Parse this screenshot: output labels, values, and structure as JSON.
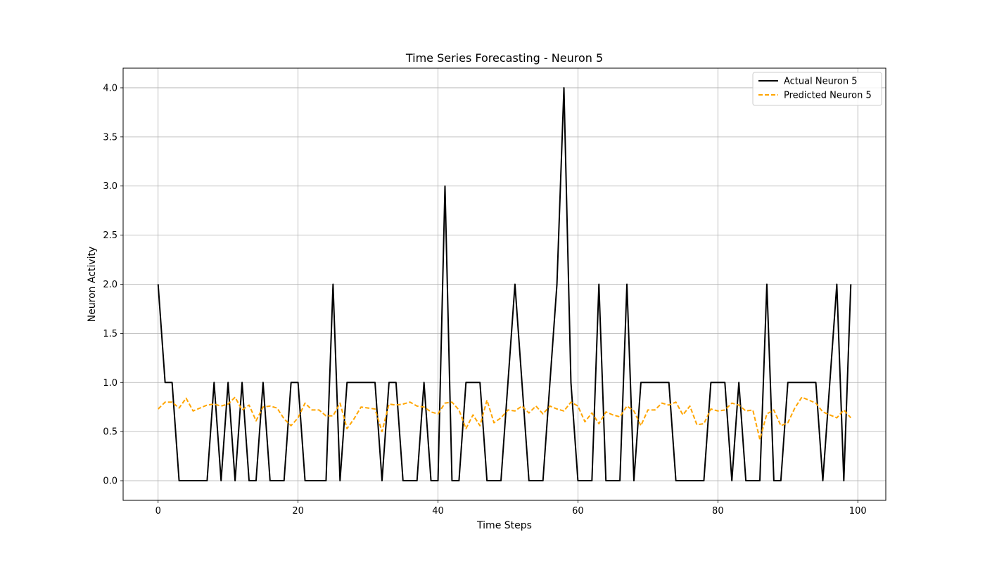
{
  "chart_data": {
    "type": "line",
    "title": "Time Series Forecasting - Neuron 5",
    "xlabel": "Time Steps",
    "ylabel": "Neuron Activity",
    "xlim": [
      -5,
      104
    ],
    "ylim": [
      -0.2,
      4.2
    ],
    "xticks": [
      0,
      20,
      40,
      60,
      80,
      100
    ],
    "yticks": [
      0.0,
      0.5,
      1.0,
      1.5,
      2.0,
      2.5,
      3.0,
      3.5,
      4.0
    ],
    "ytick_labels": [
      "0.0",
      "0.5",
      "1.0",
      "1.5",
      "2.0",
      "2.5",
      "3.0",
      "3.5",
      "4.0"
    ],
    "grid": true,
    "legend_position": "top-right",
    "x": [
      0,
      1,
      2,
      3,
      4,
      5,
      6,
      7,
      8,
      9,
      10,
      11,
      12,
      13,
      14,
      15,
      16,
      17,
      18,
      19,
      20,
      21,
      22,
      23,
      24,
      25,
      26,
      27,
      28,
      29,
      30,
      31,
      32,
      33,
      34,
      35,
      36,
      37,
      38,
      39,
      40,
      41,
      42,
      43,
      44,
      45,
      46,
      47,
      48,
      49,
      50,
      51,
      52,
      53,
      54,
      55,
      56,
      57,
      58,
      59,
      60,
      61,
      62,
      63,
      64,
      65,
      66,
      67,
      68,
      69,
      70,
      71,
      72,
      73,
      74,
      75,
      76,
      77,
      78,
      79,
      80,
      81,
      82,
      83,
      84,
      85,
      86,
      87,
      88,
      89,
      90,
      91,
      92,
      93,
      94,
      95,
      96,
      97,
      98,
      99
    ],
    "series": [
      {
        "name": "Actual Neuron 5",
        "color": "#000000",
        "style": "solid",
        "values": [
          2,
          1,
          1,
          0,
          0,
          0,
          0,
          0,
          1,
          0,
          1,
          0,
          1,
          0,
          0,
          1,
          0,
          0,
          0,
          1,
          1,
          0,
          0,
          0,
          0,
          2,
          0,
          1,
          1,
          1,
          1,
          1,
          0,
          1,
          1,
          0,
          0,
          0,
          1,
          0,
          0,
          3,
          0,
          0,
          1,
          1,
          1,
          0,
          0,
          0,
          1,
          2,
          1,
          0,
          0,
          0,
          1,
          2,
          4,
          1,
          0,
          0,
          0,
          2,
          0,
          0,
          0,
          2,
          0,
          1,
          1,
          1,
          1,
          1,
          0,
          0,
          0,
          0,
          0,
          1,
          1,
          1,
          0,
          1,
          0,
          0,
          0,
          2,
          0,
          0,
          1,
          1,
          1,
          1,
          1,
          0,
          1,
          2,
          0,
          2
        ]
      },
      {
        "name": "Predicted Neuron 5",
        "color": "#FFA500",
        "style": "dashed",
        "values": [
          0.73,
          0.8,
          0.8,
          0.74,
          0.84,
          0.71,
          0.74,
          0.77,
          0.78,
          0.76,
          0.78,
          0.85,
          0.72,
          0.77,
          0.61,
          0.75,
          0.76,
          0.74,
          0.63,
          0.56,
          0.64,
          0.79,
          0.72,
          0.72,
          0.66,
          0.66,
          0.79,
          0.53,
          0.63,
          0.75,
          0.74,
          0.73,
          0.5,
          0.78,
          0.77,
          0.78,
          0.8,
          0.76,
          0.75,
          0.7,
          0.68,
          0.79,
          0.8,
          0.72,
          0.53,
          0.67,
          0.56,
          0.82,
          0.59,
          0.64,
          0.72,
          0.71,
          0.76,
          0.69,
          0.76,
          0.68,
          0.76,
          0.73,
          0.71,
          0.8,
          0.76,
          0.6,
          0.69,
          0.58,
          0.7,
          0.67,
          0.65,
          0.76,
          0.71,
          0.56,
          0.72,
          0.72,
          0.79,
          0.77,
          0.8,
          0.67,
          0.76,
          0.57,
          0.58,
          0.73,
          0.71,
          0.72,
          0.79,
          0.77,
          0.71,
          0.72,
          0.42,
          0.68,
          0.72,
          0.56,
          0.59,
          0.74,
          0.85,
          0.82,
          0.79,
          0.7,
          0.67,
          0.64,
          0.72,
          0.64
        ]
      }
    ]
  }
}
